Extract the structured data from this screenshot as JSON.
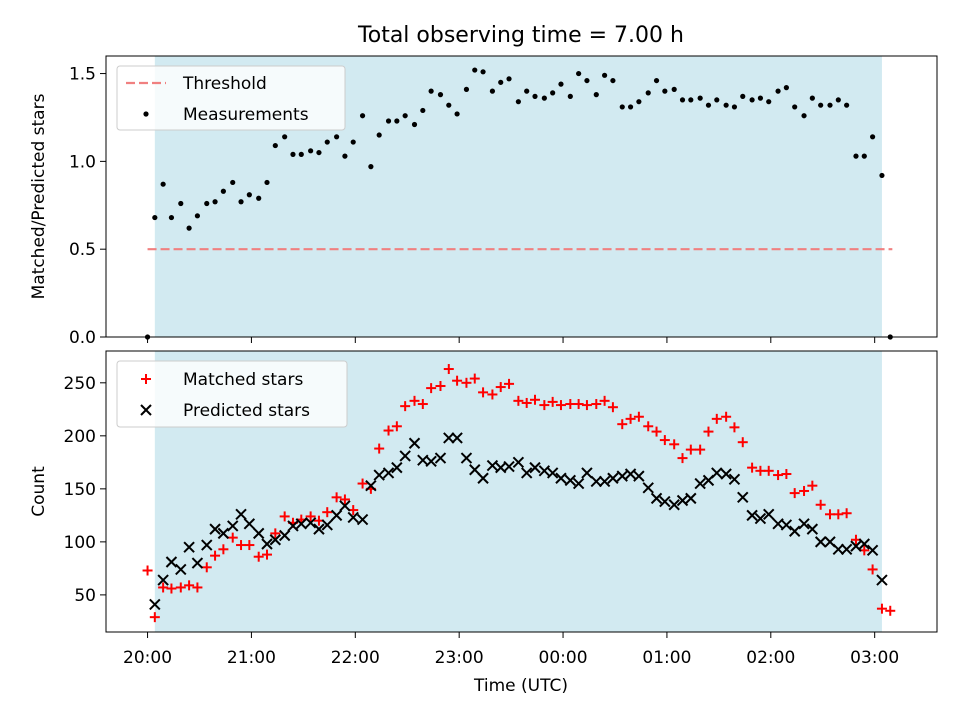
{
  "title": "Total observing time = 7.00 h",
  "xlabel": "Time (UTC)",
  "x_ticks": [
    "20:00",
    "21:00",
    "22:00",
    "23:00",
    "00:00",
    "01:00",
    "02:00",
    "03:00"
  ],
  "colors": {
    "shade": "#add8e6",
    "threshold": "#f08080",
    "matched": "#ff0000",
    "predicted": "#000000"
  },
  "chart_data": [
    {
      "type": "scatter",
      "ylabel": "Matched/Predicted stars",
      "xlim_hours": [
        -0.4,
        7.6
      ],
      "ylim": [
        0,
        1.6
      ],
      "y_ticks": [
        "0.0",
        "0.5",
        "1.0",
        "1.5"
      ],
      "shaded_span_hours": [
        0.07,
        7.07
      ],
      "legend": {
        "placement": "upper-left",
        "entries": [
          "Threshold",
          "Measurements"
        ]
      },
      "threshold": {
        "name": "Threshold",
        "value": 0.5,
        "x_range_hours": [
          0.0,
          7.17
        ]
      },
      "series": [
        {
          "name": "Measurements",
          "x_hours": [
            0.0,
            0.07,
            0.15,
            0.23,
            0.32,
            0.4,
            0.48,
            0.57,
            0.65,
            0.73,
            0.82,
            0.9,
            0.98,
            1.07,
            1.15,
            1.23,
            1.32,
            1.4,
            1.48,
            1.57,
            1.65,
            1.73,
            1.82,
            1.9,
            1.98,
            2.07,
            2.15,
            2.23,
            2.32,
            2.4,
            2.48,
            2.57,
            2.65,
            2.73,
            2.82,
            2.9,
            2.98,
            3.07,
            3.15,
            3.23,
            3.32,
            3.4,
            3.48,
            3.57,
            3.65,
            3.73,
            3.82,
            3.9,
            3.98,
            4.07,
            4.15,
            4.23,
            4.32,
            4.4,
            4.48,
            4.57,
            4.65,
            4.73,
            4.82,
            4.9,
            4.98,
            5.07,
            5.15,
            5.23,
            5.32,
            5.4,
            5.48,
            5.57,
            5.65,
            5.73,
            5.82,
            5.9,
            5.98,
            6.07,
            6.15,
            6.23,
            6.32,
            6.4,
            6.48,
            6.57,
            6.65,
            6.73,
            6.82,
            6.9,
            6.98,
            7.07,
            7.15
          ],
          "y": [
            0.0,
            0.68,
            0.87,
            0.68,
            0.76,
            0.62,
            0.69,
            0.76,
            0.77,
            0.83,
            0.88,
            0.77,
            0.81,
            0.79,
            0.88,
            1.09,
            1.14,
            1.04,
            1.04,
            1.06,
            1.05,
            1.11,
            1.14,
            1.03,
            1.11,
            1.26,
            0.97,
            1.15,
            1.23,
            1.23,
            1.26,
            1.21,
            1.29,
            1.4,
            1.38,
            1.32,
            1.27,
            1.41,
            1.52,
            1.51,
            1.4,
            1.45,
            1.47,
            1.34,
            1.4,
            1.37,
            1.36,
            1.39,
            1.44,
            1.37,
            1.5,
            1.46,
            1.38,
            1.49,
            1.46,
            1.31,
            1.31,
            1.34,
            1.39,
            1.46,
            1.4,
            1.41,
            1.35,
            1.35,
            1.36,
            1.32,
            1.35,
            1.32,
            1.31,
            1.37,
            1.35,
            1.36,
            1.34,
            1.4,
            1.42,
            1.31,
            1.26,
            1.36,
            1.32,
            1.32,
            1.35,
            1.32,
            1.03,
            1.03,
            1.14,
            0.92,
            0.0
          ]
        }
      ]
    },
    {
      "type": "scatter",
      "ylabel": "Count",
      "xlim_hours": [
        -0.4,
        7.6
      ],
      "ylim": [
        15,
        280
      ],
      "y_ticks": [
        "50",
        "100",
        "150",
        "200",
        "250"
      ],
      "shaded_span_hours": [
        0.07,
        7.07
      ],
      "legend": {
        "placement": "upper-left",
        "entries": [
          "Matched stars",
          "Predicted stars"
        ]
      },
      "series": [
        {
          "name": "Matched stars",
          "marker": "+",
          "x_hours": [
            0.0,
            0.07,
            0.15,
            0.23,
            0.32,
            0.4,
            0.48,
            0.57,
            0.65,
            0.73,
            0.82,
            0.9,
            0.98,
            1.07,
            1.15,
            1.23,
            1.32,
            1.4,
            1.48,
            1.57,
            1.65,
            1.73,
            1.82,
            1.9,
            1.98,
            2.07,
            2.15,
            2.23,
            2.32,
            2.4,
            2.48,
            2.57,
            2.65,
            2.73,
            2.82,
            2.9,
            2.98,
            3.07,
            3.15,
            3.23,
            3.32,
            3.4,
            3.48,
            3.57,
            3.65,
            3.73,
            3.82,
            3.9,
            3.98,
            4.07,
            4.15,
            4.23,
            4.32,
            4.4,
            4.48,
            4.57,
            4.65,
            4.73,
            4.82,
            4.9,
            4.98,
            5.07,
            5.15,
            5.23,
            5.32,
            5.4,
            5.48,
            5.57,
            5.65,
            5.73,
            5.82,
            5.9,
            5.98,
            6.07,
            6.15,
            6.23,
            6.32,
            6.4,
            6.48,
            6.57,
            6.65,
            6.73,
            6.82,
            6.9,
            6.98,
            7.07,
            7.15
          ],
          "y": [
            73,
            29,
            57,
            56,
            57,
            59,
            57,
            76,
            87,
            93,
            104,
            97,
            97,
            86,
            88,
            108,
            124,
            118,
            121,
            124,
            120,
            128,
            142,
            140,
            130,
            155,
            150,
            188,
            205,
            209,
            228,
            233,
            230,
            245,
            247,
            263,
            252,
            250,
            254,
            241,
            239,
            246,
            249,
            233,
            231,
            234,
            229,
            232,
            229,
            230,
            230,
            229,
            230,
            233,
            227,
            211,
            216,
            218,
            209,
            204,
            196,
            192,
            179,
            187,
            187,
            204,
            216,
            218,
            208,
            194,
            170,
            167,
            167,
            163,
            164,
            146,
            148,
            153,
            135,
            126,
            126,
            127,
            102,
            92,
            74,
            37,
            35
          ]
        },
        {
          "name": "Predicted stars",
          "marker": "x",
          "x_hours": [
            0.07,
            0.15,
            0.23,
            0.32,
            0.4,
            0.48,
            0.57,
            0.65,
            0.73,
            0.82,
            0.9,
            0.98,
            1.07,
            1.15,
            1.23,
            1.32,
            1.4,
            1.48,
            1.57,
            1.65,
            1.73,
            1.82,
            1.9,
            1.98,
            2.07,
            2.15,
            2.23,
            2.32,
            2.4,
            2.48,
            2.57,
            2.65,
            2.73,
            2.82,
            2.9,
            2.98,
            3.07,
            3.15,
            3.23,
            3.32,
            3.4,
            3.48,
            3.57,
            3.65,
            3.73,
            3.82,
            3.9,
            3.98,
            4.07,
            4.15,
            4.23,
            4.32,
            4.4,
            4.48,
            4.57,
            4.65,
            4.73,
            4.82,
            4.9,
            4.98,
            5.07,
            5.15,
            5.23,
            5.32,
            5.4,
            5.48,
            5.57,
            5.65,
            5.73,
            5.82,
            5.9,
            5.98,
            6.07,
            6.15,
            6.23,
            6.32,
            6.4,
            6.48,
            6.57,
            6.65,
            6.73,
            6.82,
            6.9,
            6.98,
            7.07
          ],
          "y": [
            41,
            64,
            81,
            74,
            95,
            80,
            97,
            112,
            108,
            115,
            126,
            117,
            108,
            98,
            102,
            106,
            115,
            117,
            118,
            112,
            116,
            125,
            134,
            123,
            121,
            153,
            163,
            165,
            170,
            181,
            193,
            177,
            176,
            179,
            198,
            198,
            179,
            168,
            160,
            172,
            170,
            171,
            175,
            165,
            170,
            167,
            165,
            160,
            158,
            155,
            165,
            157,
            157,
            160,
            162,
            164,
            162,
            151,
            141,
            138,
            135,
            139,
            141,
            155,
            158,
            165,
            164,
            159,
            142,
            125,
            122,
            126,
            117,
            116,
            110,
            117,
            112,
            100,
            100,
            93,
            93,
            96,
            98,
            92,
            64
          ]
        }
      ]
    }
  ]
}
